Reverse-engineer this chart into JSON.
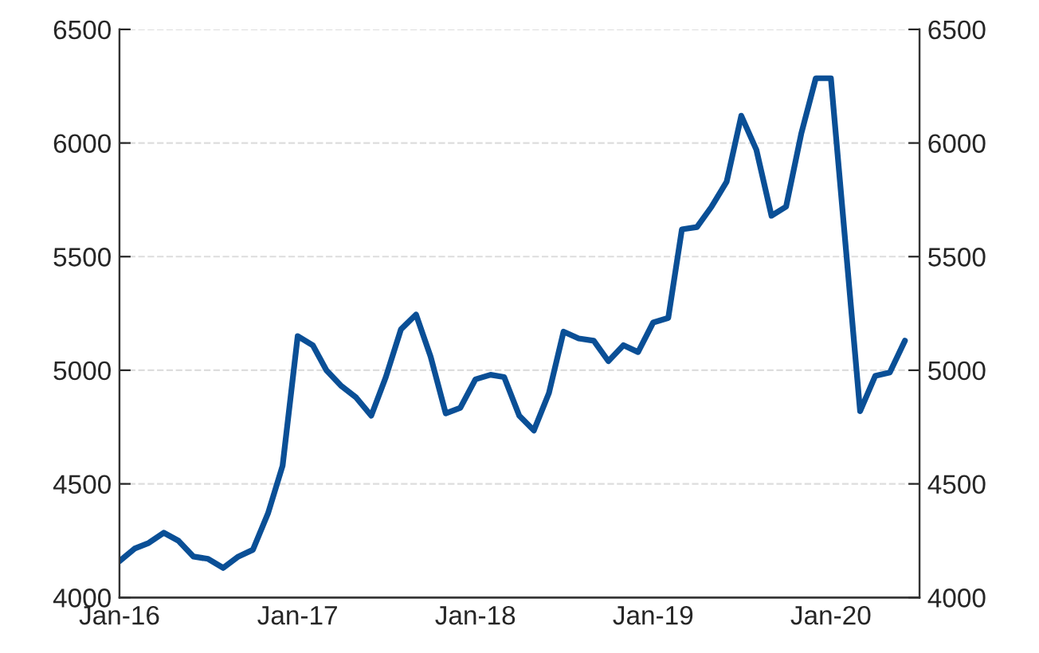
{
  "chart_data": {
    "type": "line",
    "x": [
      "2016-01",
      "2016-02",
      "2016-03",
      "2016-04",
      "2016-05",
      "2016-06",
      "2016-07",
      "2016-08",
      "2016-09",
      "2016-10",
      "2016-11",
      "2016-12",
      "2017-01",
      "2017-02",
      "2017-03",
      "2017-04",
      "2017-05",
      "2017-06",
      "2017-07",
      "2017-08",
      "2017-09",
      "2017-10",
      "2017-11",
      "2017-12",
      "2018-01",
      "2018-02",
      "2018-03",
      "2018-04",
      "2018-05",
      "2018-06",
      "2018-07",
      "2018-08",
      "2018-09",
      "2018-10",
      "2018-11",
      "2018-12",
      "2019-01",
      "2019-02",
      "2019-03",
      "2019-04",
      "2019-05",
      "2019-06",
      "2019-07",
      "2019-08",
      "2019-09",
      "2019-10",
      "2019-11",
      "2019-12",
      "2020-01",
      "2020-02",
      "2020-03",
      "2020-04",
      "2020-05",
      "2020-06"
    ],
    "series": [
      {
        "color": "#0a4f96",
        "values": [
          4160,
          4215,
          4240,
          4285,
          4250,
          4180,
          4170,
          4130,
          4180,
          4210,
          4370,
          4580,
          5150,
          5110,
          5000,
          4930,
          4880,
          4800,
          4970,
          5180,
          5245,
          5060,
          4810,
          4835,
          4960,
          4980,
          4970,
          4800,
          4735,
          4900,
          5170,
          5140,
          5130,
          5040,
          5110,
          5080,
          5210,
          5230,
          5620,
          5630,
          5720,
          5830,
          6120,
          5970,
          5680,
          5720,
          6040,
          6285,
          6285,
          5530,
          4820,
          4975,
          4990,
          5130
        ]
      }
    ],
    "xlim": [
      "2016-01",
      "2020-07"
    ],
    "xticks": [
      {
        "value": "2016-01",
        "label": "Jan-16"
      },
      {
        "value": "2017-01",
        "label": "Jan-17"
      },
      {
        "value": "2018-01",
        "label": "Jan-18"
      },
      {
        "value": "2019-01",
        "label": "Jan-19"
      },
      {
        "value": "2020-01",
        "label": "Jan-20"
      }
    ],
    "ylim": [
      4000,
      6500
    ],
    "yticks": [
      4000,
      4500,
      5000,
      5500,
      6000,
      6500
    ],
    "y2lim": [
      4000,
      6500
    ],
    "y2ticks": [
      4000,
      4500,
      5000,
      5500,
      6000,
      6500
    ],
    "grid": "y",
    "line_style": "solid",
    "marker": "none"
  }
}
